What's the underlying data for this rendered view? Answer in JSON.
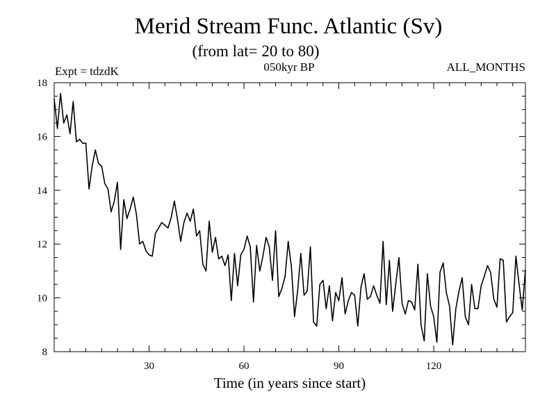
{
  "chart_data": {
    "type": "line",
    "title": "Merid Stream Func. Atlantic (Sv)",
    "subtitle": "(from lat= 20 to 80)",
    "top_left_label": "Expt = tdzdK",
    "top_center_label": "050kyr BP",
    "top_right_label": "ALL_MONTHS",
    "xlabel": "Time (in years since start)",
    "ylabel": "",
    "xlim": [
      0,
      149
    ],
    "ylim": [
      8,
      18
    ],
    "xticks_major": [
      30,
      60,
      90,
      120
    ],
    "xtick_labels": [
      "30",
      "60",
      "90",
      "120"
    ],
    "yticks_major": [
      8,
      10,
      12,
      14,
      16,
      18
    ],
    "ytick_labels": [
      "8",
      "10",
      "12",
      "14",
      "16",
      "18"
    ],
    "grid": false,
    "line_color": "#000000",
    "series": [
      {
        "name": "Merid Stream Func.",
        "x": [
          0,
          1,
          2,
          3,
          4,
          5,
          6,
          7,
          8,
          9,
          10,
          11,
          12,
          13,
          14,
          15,
          16,
          17,
          18,
          19,
          20,
          21,
          22,
          23,
          24,
          25,
          26,
          27,
          28,
          29,
          30,
          31,
          32,
          33,
          34,
          35,
          36,
          37,
          38,
          39,
          40,
          41,
          42,
          43,
          44,
          45,
          46,
          47,
          48,
          49,
          50,
          51,
          52,
          53,
          54,
          55,
          56,
          57,
          58,
          59,
          60,
          61,
          62,
          63,
          64,
          65,
          66,
          67,
          68,
          69,
          70,
          71,
          72,
          73,
          74,
          75,
          76,
          77,
          78,
          79,
          80,
          81,
          82,
          83,
          84,
          85,
          86,
          87,
          88,
          89,
          90,
          91,
          92,
          93,
          94,
          95,
          96,
          97,
          98,
          99,
          100,
          101,
          102,
          103,
          104,
          105,
          106,
          107,
          108,
          109,
          110,
          111,
          112,
          113,
          114,
          115,
          116,
          117,
          118,
          119,
          120,
          121,
          122,
          123,
          124,
          125,
          126,
          127,
          128,
          129,
          130,
          131,
          132,
          133,
          134,
          135,
          136,
          137,
          138,
          139,
          140,
          141,
          142,
          143,
          144,
          145,
          146,
          147,
          148,
          149
        ],
        "values": [
          17.4,
          16.3,
          17.6,
          16.5,
          16.8,
          16.1,
          17.3,
          15.8,
          15.9,
          15.75,
          15.75,
          14.05,
          14.9,
          15.5,
          15.0,
          14.9,
          14.25,
          14.05,
          13.2,
          13.6,
          14.3,
          11.8,
          13.65,
          12.95,
          13.3,
          13.75,
          13.1,
          12.0,
          12.1,
          11.75,
          11.6,
          11.55,
          12.4,
          12.6,
          12.8,
          12.7,
          12.6,
          13.0,
          13.6,
          12.9,
          12.1,
          12.8,
          13.15,
          12.85,
          13.3,
          12.3,
          12.5,
          11.25,
          11.0,
          12.85,
          11.7,
          12.25,
          11.45,
          11.55,
          11.2,
          11.6,
          9.9,
          11.65,
          10.45,
          11.6,
          11.8,
          12.3,
          11.9,
          9.85,
          11.95,
          11.0,
          11.55,
          12.25,
          11.9,
          10.65,
          12.5,
          10.05,
          10.35,
          10.8,
          12.1,
          11.15,
          9.3,
          10.3,
          11.65,
          10.1,
          10.25,
          11.9,
          9.1,
          8.95,
          10.5,
          10.65,
          9.6,
          10.45,
          9.15,
          10.2,
          9.9,
          10.75,
          9.4,
          9.9,
          10.2,
          10.1,
          8.95,
          10.4,
          10.9,
          9.95,
          10.05,
          10.45,
          10.1,
          9.8,
          12.1,
          9.75,
          11.4,
          9.5,
          10.5,
          11.5,
          9.8,
          9.4,
          9.9,
          9.85,
          9.55,
          11.25,
          9.0,
          8.4,
          10.9,
          9.7,
          9.3,
          8.35,
          10.95,
          11.3,
          10.2,
          9.7,
          8.25,
          9.6,
          10.25,
          10.75,
          9.3,
          9.0,
          10.5,
          9.6,
          9.6,
          10.45,
          10.8,
          11.2,
          10.95,
          9.95,
          9.65,
          11.45,
          11.4,
          9.1,
          9.3,
          9.45,
          11.55,
          10.5,
          9.55,
          11.05
        ]
      }
    ]
  }
}
